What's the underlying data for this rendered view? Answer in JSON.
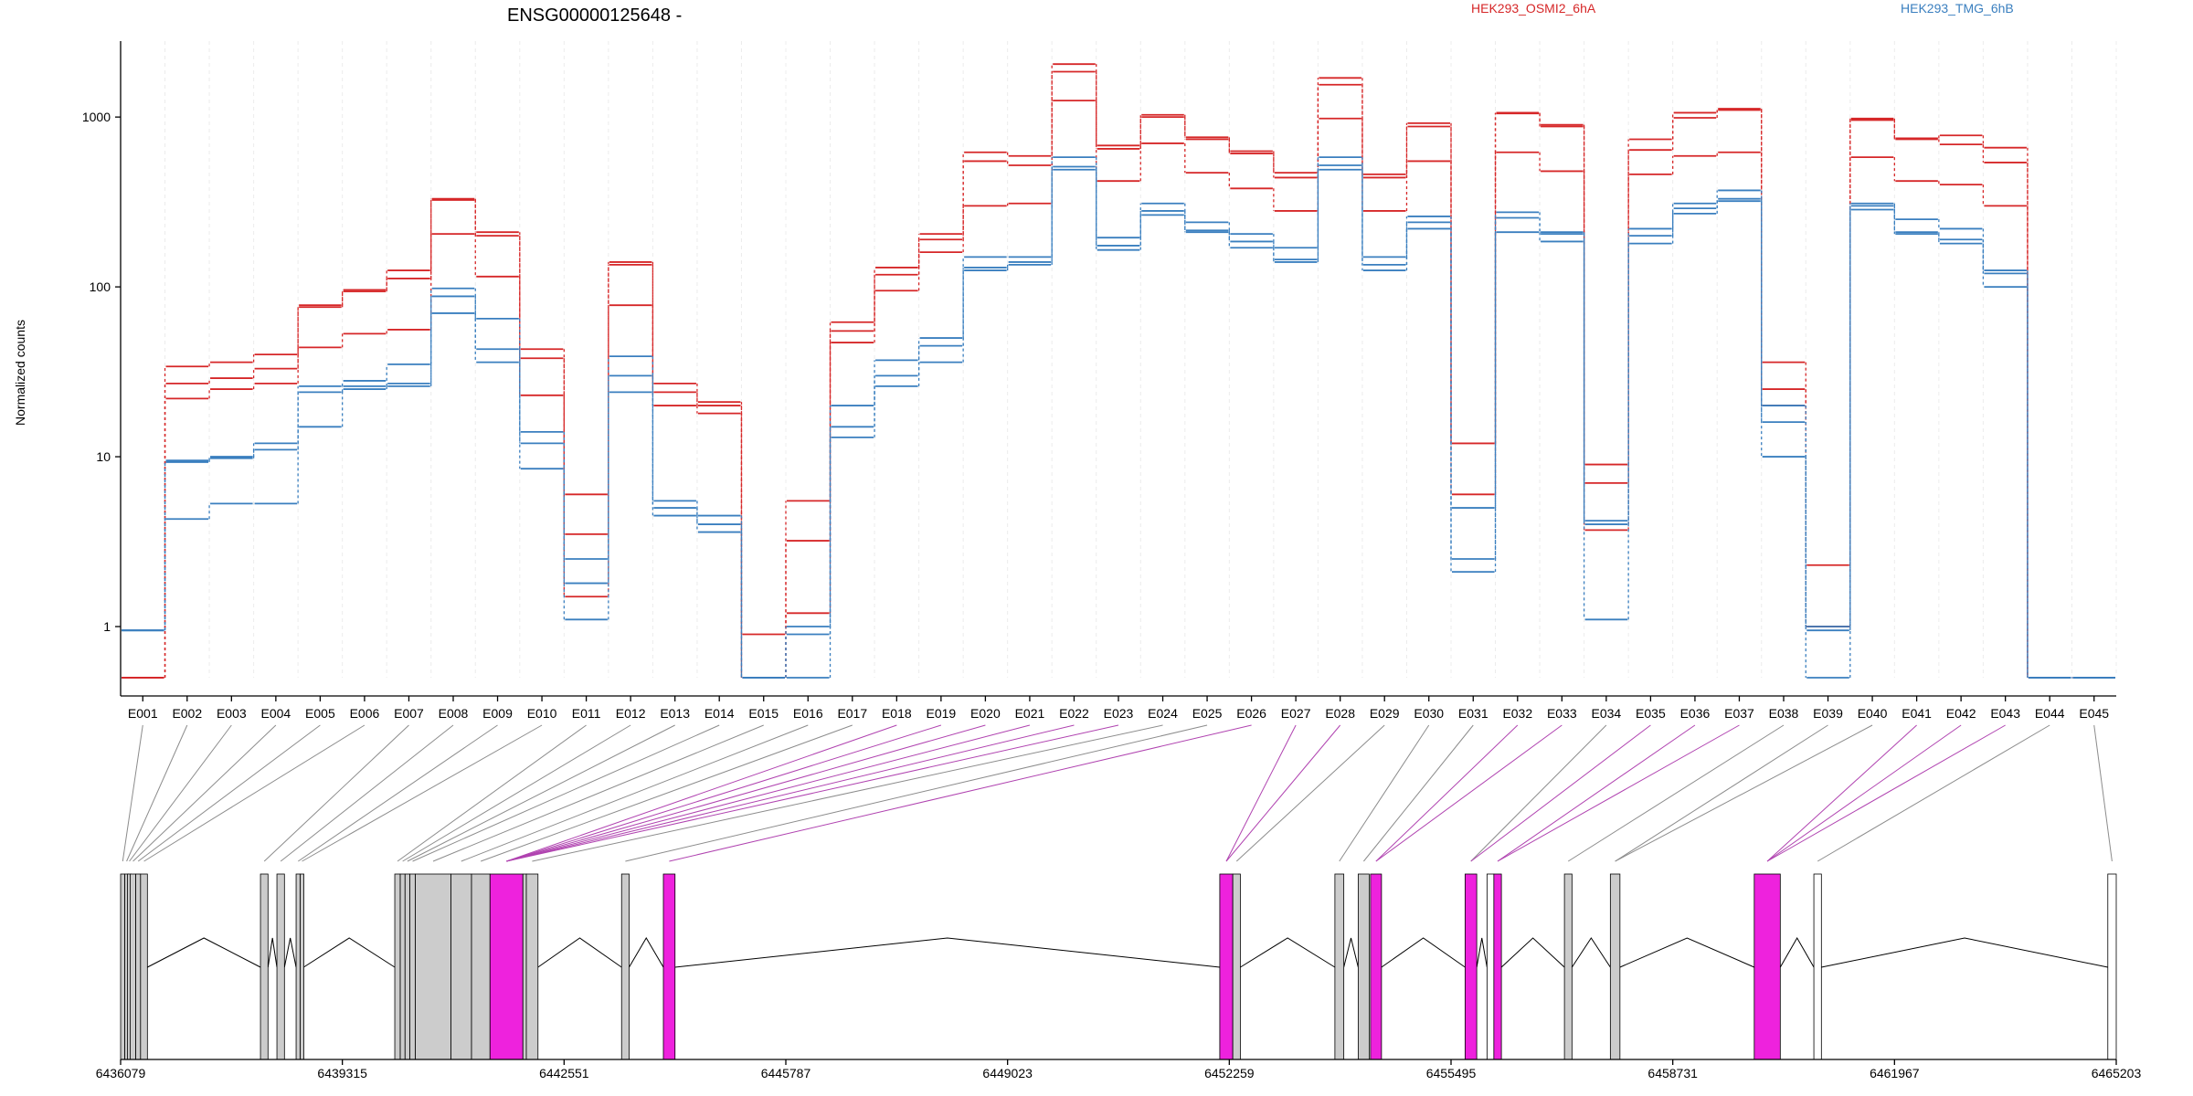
{
  "chart_data": {
    "type": "line",
    "title": "ENSG00000125648 -",
    "xlabel": "",
    "ylabel": "Normalized counts",
    "yscale": "log",
    "ylim": [
      0.5,
      2800
    ],
    "yticks": [
      1,
      10,
      100,
      1000
    ],
    "ytick_labels": [
      "1",
      "10",
      "100",
      "1000"
    ],
    "grid": "vertical dashed",
    "legend": {
      "placement": "top",
      "entries": [
        "HEK293_OSMI2_6hA",
        "HEK293_TMG_6hB"
      ]
    },
    "categories": [
      "E001",
      "E002",
      "E003",
      "E004",
      "E005",
      "E006",
      "E007",
      "E008",
      "E009",
      "E010",
      "E011",
      "E012",
      "E013",
      "E014",
      "E015",
      "E016",
      "E017",
      "E018",
      "E019",
      "E020",
      "E021",
      "E022",
      "E023",
      "E024",
      "E025",
      "E026",
      "E027",
      "E028",
      "E029",
      "E030",
      "E031",
      "E032",
      "E033",
      "E034",
      "E035",
      "E036",
      "E037",
      "E038",
      "E039",
      "E040",
      "E041",
      "E042",
      "E043",
      "E044",
      "E045"
    ],
    "colors": {
      "HEK293_OSMI2_6hA": "#d62728",
      "HEK293_TMG_6hB": "#3a7fbf",
      "exon_default": "#cccccc",
      "exon_highlight": "#ee22dd",
      "exon_empty": "#ffffff"
    },
    "series": [
      {
        "name": "HEK293_OSMI2_6hA",
        "values": [
          0.5,
          34,
          36,
          40,
          78,
          96,
          125,
          330,
          210,
          43,
          6,
          140,
          27,
          21,
          0.9,
          5.5,
          62,
          130,
          205,
          620,
          590,
          2050,
          680,
          1030,
          760,
          630,
          470,
          1700,
          460,
          920,
          12,
          1060,
          900,
          9,
          740,
          1060,
          1120,
          36,
          2.3,
          980,
          750,
          780,
          660,
          0.5,
          0.5
        ]
      },
      {
        "name": "HEK293_OSMI2_6hA",
        "values": [
          0.5,
          27,
          29,
          33,
          76,
          94,
          112,
          325,
          200,
          38,
          3.5,
          135,
          24,
          20,
          0.5,
          3.2,
          55,
          118,
          190,
          550,
          520,
          1850,
          650,
          1000,
          740,
          610,
          440,
          1550,
          440,
          880,
          12,
          1050,
          880,
          7,
          640,
          990,
          1100,
          25,
          1,
          960,
          740,
          690,
          540,
          0.5,
          0.5
        ]
      },
      {
        "name": "HEK293_OSMI2_6hA",
        "values": [
          0.5,
          22,
          25,
          27,
          44,
          53,
          56,
          205,
          115,
          23,
          1.5,
          78,
          20,
          18,
          0.5,
          1.2,
          47,
          95,
          160,
          300,
          310,
          1250,
          420,
          700,
          470,
          380,
          280,
          980,
          280,
          550,
          6,
          620,
          480,
          3.7,
          460,
          590,
          620,
          20,
          1,
          580,
          420,
          400,
          300,
          0.5,
          0.5
        ]
      },
      {
        "name": "HEK293_TMG_6hB",
        "values": [
          0.95,
          9.5,
          10,
          12,
          26,
          28,
          35,
          98,
          65,
          14,
          2.5,
          39,
          5.5,
          4.5,
          0.5,
          1,
          20,
          37,
          50,
          150,
          150,
          580,
          195,
          310,
          240,
          205,
          170,
          580,
          150,
          260,
          5,
          275,
          210,
          4.2,
          220,
          310,
          370,
          20,
          1,
          310,
          250,
          220,
          125,
          0.5,
          0.5
        ]
      },
      {
        "name": "HEK293_TMG_6hB",
        "values": [
          0.95,
          9.3,
          9.8,
          11,
          24,
          26,
          27,
          88,
          43,
          12,
          1.8,
          30,
          5,
          4,
          0.5,
          0.9,
          15,
          30,
          45,
          130,
          140,
          510,
          175,
          280,
          215,
          185,
          145,
          520,
          135,
          240,
          2.5,
          255,
          205,
          4,
          200,
          290,
          330,
          16,
          0.95,
          300,
          210,
          190,
          120,
          0.5,
          0.5
        ]
      },
      {
        "name": "HEK293_TMG_6hB",
        "values": [
          0.95,
          4.3,
          5.3,
          5.3,
          15,
          25,
          26,
          70,
          36,
          8.5,
          1.1,
          24,
          4.5,
          3.6,
          0.5,
          0.5,
          13,
          26,
          36,
          125,
          135,
          490,
          165,
          265,
          210,
          170,
          140,
          490,
          125,
          220,
          2.1,
          210,
          185,
          1.1,
          180,
          270,
          320,
          10,
          0.5,
          285,
          205,
          180,
          100,
          0.5,
          0.5
        ]
      }
    ],
    "gene_model": {
      "xlim": [
        6436079,
        6465203
      ],
      "xticks": [
        6436079,
        6439315,
        6442551,
        6445787,
        6449023,
        6452259,
        6455495,
        6458731,
        6461967,
        6465203
      ],
      "xtick_labels": [
        "6436079",
        "6439315",
        "6442551",
        "6445787",
        "6449023",
        "6452259",
        "6455495",
        "6458731",
        "6461967",
        "6465203"
      ],
      "exons": [
        {
          "id": "E001",
          "start": 6436079,
          "end": 6436140,
          "type": "default"
        },
        {
          "id": "E002",
          "start": 6436140,
          "end": 6436180,
          "type": "default"
        },
        {
          "id": "E003",
          "start": 6436180,
          "end": 6436220,
          "type": "default"
        },
        {
          "id": "E004",
          "start": 6436220,
          "end": 6436300,
          "type": "default"
        },
        {
          "id": "E005",
          "start": 6436300,
          "end": 6436370,
          "type": "default"
        },
        {
          "id": "E006",
          "start": 6436370,
          "end": 6436470,
          "type": "default"
        },
        {
          "id": "E007",
          "start": 6438120,
          "end": 6438230,
          "type": "default"
        },
        {
          "id": "E008",
          "start": 6438360,
          "end": 6438470,
          "type": "default"
        },
        {
          "id": "E009",
          "start": 6438640,
          "end": 6438700,
          "type": "default"
        },
        {
          "id": "E010",
          "start": 6438700,
          "end": 6438750,
          "type": "default"
        },
        {
          "id": "E011",
          "start": 6440080,
          "end": 6440160,
          "type": "default"
        },
        {
          "id": "E012",
          "start": 6440160,
          "end": 6440230,
          "type": "default"
        },
        {
          "id": "E013",
          "start": 6440230,
          "end": 6440300,
          "type": "default"
        },
        {
          "id": "E014",
          "start": 6440300,
          "end": 6440380,
          "type": "default"
        },
        {
          "id": "E015",
          "start": 6440380,
          "end": 6440900,
          "type": "default"
        },
        {
          "id": "E016",
          "start": 6440900,
          "end": 6441200,
          "type": "default"
        },
        {
          "id": "E017",
          "start": 6441200,
          "end": 6441470,
          "type": "default"
        },
        {
          "id": "E018",
          "start": 6441470,
          "end": 6441950,
          "type": "highlight"
        },
        {
          "id": "E019",
          "start": 6441950,
          "end": 6442000,
          "type": "default"
        },
        {
          "id": "E020",
          "start": 6442000,
          "end": 6442170,
          "type": "default"
        },
        {
          "id": "E021",
          "start": 6443390,
          "end": 6443500,
          "type": "default"
        },
        {
          "id": "E022",
          "start": 6444000,
          "end": 6444170,
          "type": "highlight"
        },
        {
          "id": "E023",
          "start": 6452120,
          "end": 6452310,
          "type": "highlight"
        },
        {
          "id": "E024",
          "start": 6452310,
          "end": 6452420,
          "type": "default"
        },
        {
          "id": "E025",
          "start": 6453800,
          "end": 6453930,
          "type": "default"
        },
        {
          "id": "E026",
          "start": 6454140,
          "end": 6454300,
          "type": "default"
        },
        {
          "id": "E027",
          "start": 6454320,
          "end": 6454480,
          "type": "highlight"
        },
        {
          "id": "E028",
          "start": 6455700,
          "end": 6455870,
          "type": "highlight"
        },
        {
          "id": "E029",
          "start": 6456020,
          "end": 6456120,
          "type": "empty"
        },
        {
          "id": "E030",
          "start": 6456120,
          "end": 6456230,
          "type": "highlight"
        },
        {
          "id": "E031",
          "start": 6457150,
          "end": 6457260,
          "type": "default"
        },
        {
          "id": "E032",
          "start": 6457820,
          "end": 6457960,
          "type": "default"
        },
        {
          "id": "E033",
          "start": 6459920,
          "end": 6460300,
          "type": "highlight"
        },
        {
          "id": "E034",
          "start": 6460790,
          "end": 6460900,
          "type": "empty"
        },
        {
          "id": "E035",
          "start": 6465080,
          "end": 6465203,
          "type": "empty"
        }
      ],
      "connectors": [
        {
          "exon": "E001",
          "target": "E001",
          "color": "default"
        },
        {
          "exon": "E002",
          "target": "E002",
          "color": "default"
        },
        {
          "exon": "E003",
          "target": "E003",
          "color": "default"
        },
        {
          "exon": "E004",
          "target": "E004",
          "color": "default"
        },
        {
          "exon": "E005",
          "target": "E005",
          "color": "default"
        },
        {
          "exon": "E006",
          "target": "E006",
          "color": "default"
        },
        {
          "exon": "E007",
          "target": "E007",
          "color": "default"
        },
        {
          "exon": "E008",
          "target": "E008",
          "color": "default"
        },
        {
          "exon": "E009",
          "target": "E009",
          "color": "default"
        },
        {
          "exon": "E010",
          "target": "E010",
          "color": "default"
        },
        {
          "exon": "E011",
          "target": "E011",
          "color": "default"
        },
        {
          "exon": "E012",
          "target": "E012",
          "color": "default"
        },
        {
          "exon": "E013",
          "target": "E013",
          "color": "default"
        },
        {
          "exon": "E014",
          "target": "E014",
          "color": "default"
        },
        {
          "exon": "E015",
          "target": "E015",
          "color": "default"
        },
        {
          "exon": "E016",
          "target": "E016",
          "color": "default"
        },
        {
          "exon": "E017",
          "target": "E017",
          "color": "default"
        },
        {
          "exon": "E018",
          "target": "E018",
          "color": "highlight"
        },
        {
          "exon": "E019",
          "target": "E018",
          "color": "highlight"
        },
        {
          "exon": "E020",
          "target": "E018",
          "color": "highlight"
        },
        {
          "exon": "E021",
          "target": "E018",
          "color": "highlight"
        },
        {
          "exon": "E022",
          "target": "E018",
          "color": "highlight"
        },
        {
          "exon": "E023",
          "target": "E018",
          "color": "highlight"
        },
        {
          "exon": "E024",
          "target": "E020",
          "color": "default"
        },
        {
          "exon": "E025",
          "target": "E021",
          "color": "default"
        },
        {
          "exon": "E026",
          "target": "E022",
          "color": "highlight"
        },
        {
          "exon": "E027",
          "target": "E023",
          "color": "highlight"
        },
        {
          "exon": "E028",
          "target": "E023",
          "color": "highlight"
        },
        {
          "exon": "E029",
          "target": "E024",
          "color": "default"
        },
        {
          "exon": "E030",
          "target": "E025",
          "color": "default"
        },
        {
          "exon": "E031",
          "target": "E026",
          "color": "default"
        },
        {
          "exon": "E032",
          "target": "E027",
          "color": "highlight"
        },
        {
          "exon": "E033",
          "target": "E027",
          "color": "highlight"
        },
        {
          "exon": "E034",
          "target": "E028",
          "color": "default"
        },
        {
          "exon": "E035",
          "target": "E028",
          "color": "highlight"
        },
        {
          "exon": "E036",
          "target": "E030",
          "color": "highlight"
        },
        {
          "exon": "E037",
          "target": "E030",
          "color": "highlight"
        },
        {
          "exon": "E038",
          "target": "E031",
          "color": "default"
        },
        {
          "exon": "E039",
          "target": "E032",
          "color": "default"
        },
        {
          "exon": "E040",
          "target": "E032",
          "color": "default"
        },
        {
          "exon": "E041",
          "target": "E033",
          "color": "highlight"
        },
        {
          "exon": "E042",
          "target": "E033",
          "color": "highlight"
        },
        {
          "exon": "E043",
          "target": "E033",
          "color": "highlight"
        },
        {
          "exon": "E044",
          "target": "E034",
          "color": "default"
        },
        {
          "exon": "E045",
          "target": "E035",
          "color": "default"
        }
      ]
    }
  }
}
